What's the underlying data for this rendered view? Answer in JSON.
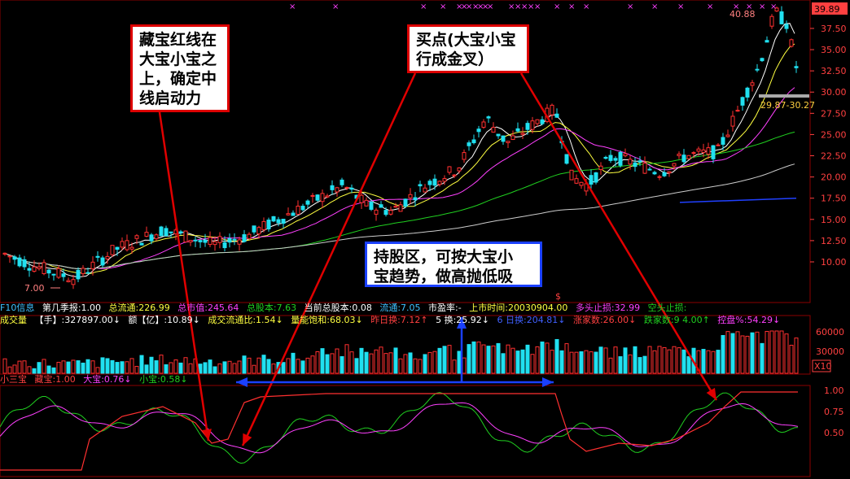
{
  "price_panel": {
    "y_ticks": [
      "39.89",
      "37.50",
      "35.00",
      "32.50",
      "30.00",
      "27.50",
      "25.00",
      "22.50",
      "20.00",
      "17.50",
      "15.00",
      "12.50",
      "10.00"
    ],
    "top_value_box": "39.89",
    "high_label": "40.88",
    "low_label": "7.00",
    "range_label": "29.87-30.27",
    "marker_char": "×",
    "dollar_mark": "$"
  },
  "info_bar1": {
    "name": "F10信息",
    "report": "第几季报:1.00",
    "float_shares": "总流通:226.99",
    "market_cap": "总市值:245.64",
    "total_shares": "总股本:7.63",
    "current_total": "当前总股本:0.08",
    "float_ratio": "流通:7.05",
    "pe": "市盈率:-",
    "list_date": "上市时间:20030904.00",
    "long_stop": "多头止损:32.99",
    "short_stop": "空头止损:"
  },
  "info_bar2": {
    "label": "成交量",
    "vol": "【手】:327897.00↓",
    "amount": "额【亿】:10.89↓",
    "turnover_ratio": "成交流通比:1.54↓",
    "saturation": "量能饱和:68.03↓",
    "prev_day": "昨日换:7.12↑",
    "five_day": "5 换:25.92↓",
    "six_day": "6 日换:204.81↓",
    "up_count": "涨家数:26.00↓",
    "down_count": "跌家数:9 4.00↑",
    "control": "控盘%:54.29↓"
  },
  "volume_panel": {
    "y_ticks": [
      "60000",
      "30000",
      "X10"
    ]
  },
  "indicator_bar": {
    "name": "小三宝",
    "cang": "藏宝:1.00",
    "da": "大宝:0.76↓",
    "xiao": "小宝:0.58↓"
  },
  "indicator_panel": {
    "y_ticks": [
      "1.00",
      "0.75",
      "0.50"
    ]
  },
  "annotations": {
    "note1": [
      "藏宝红线在",
      "大宝小宝之",
      "上，确定中",
      "线启动力"
    ],
    "note2": [
      "买点(大宝小宝",
      "行成金叉）"
    ],
    "note3": [
      "持股区，可按大宝小",
      "宝趋势，做高抛低吸"
    ]
  },
  "colors": {
    "up": "#ff3030",
    "down": "#20e0f0",
    "ma5": "#ffffff",
    "ma10": "#ffff40",
    "ma20": "#ff40ff",
    "ma60": "#20d020",
    "ma120": "#cccccc",
    "grid": "#8b0000",
    "annotation_red": "#e00000",
    "annotation_blue": "#1a40ff"
  }
}
